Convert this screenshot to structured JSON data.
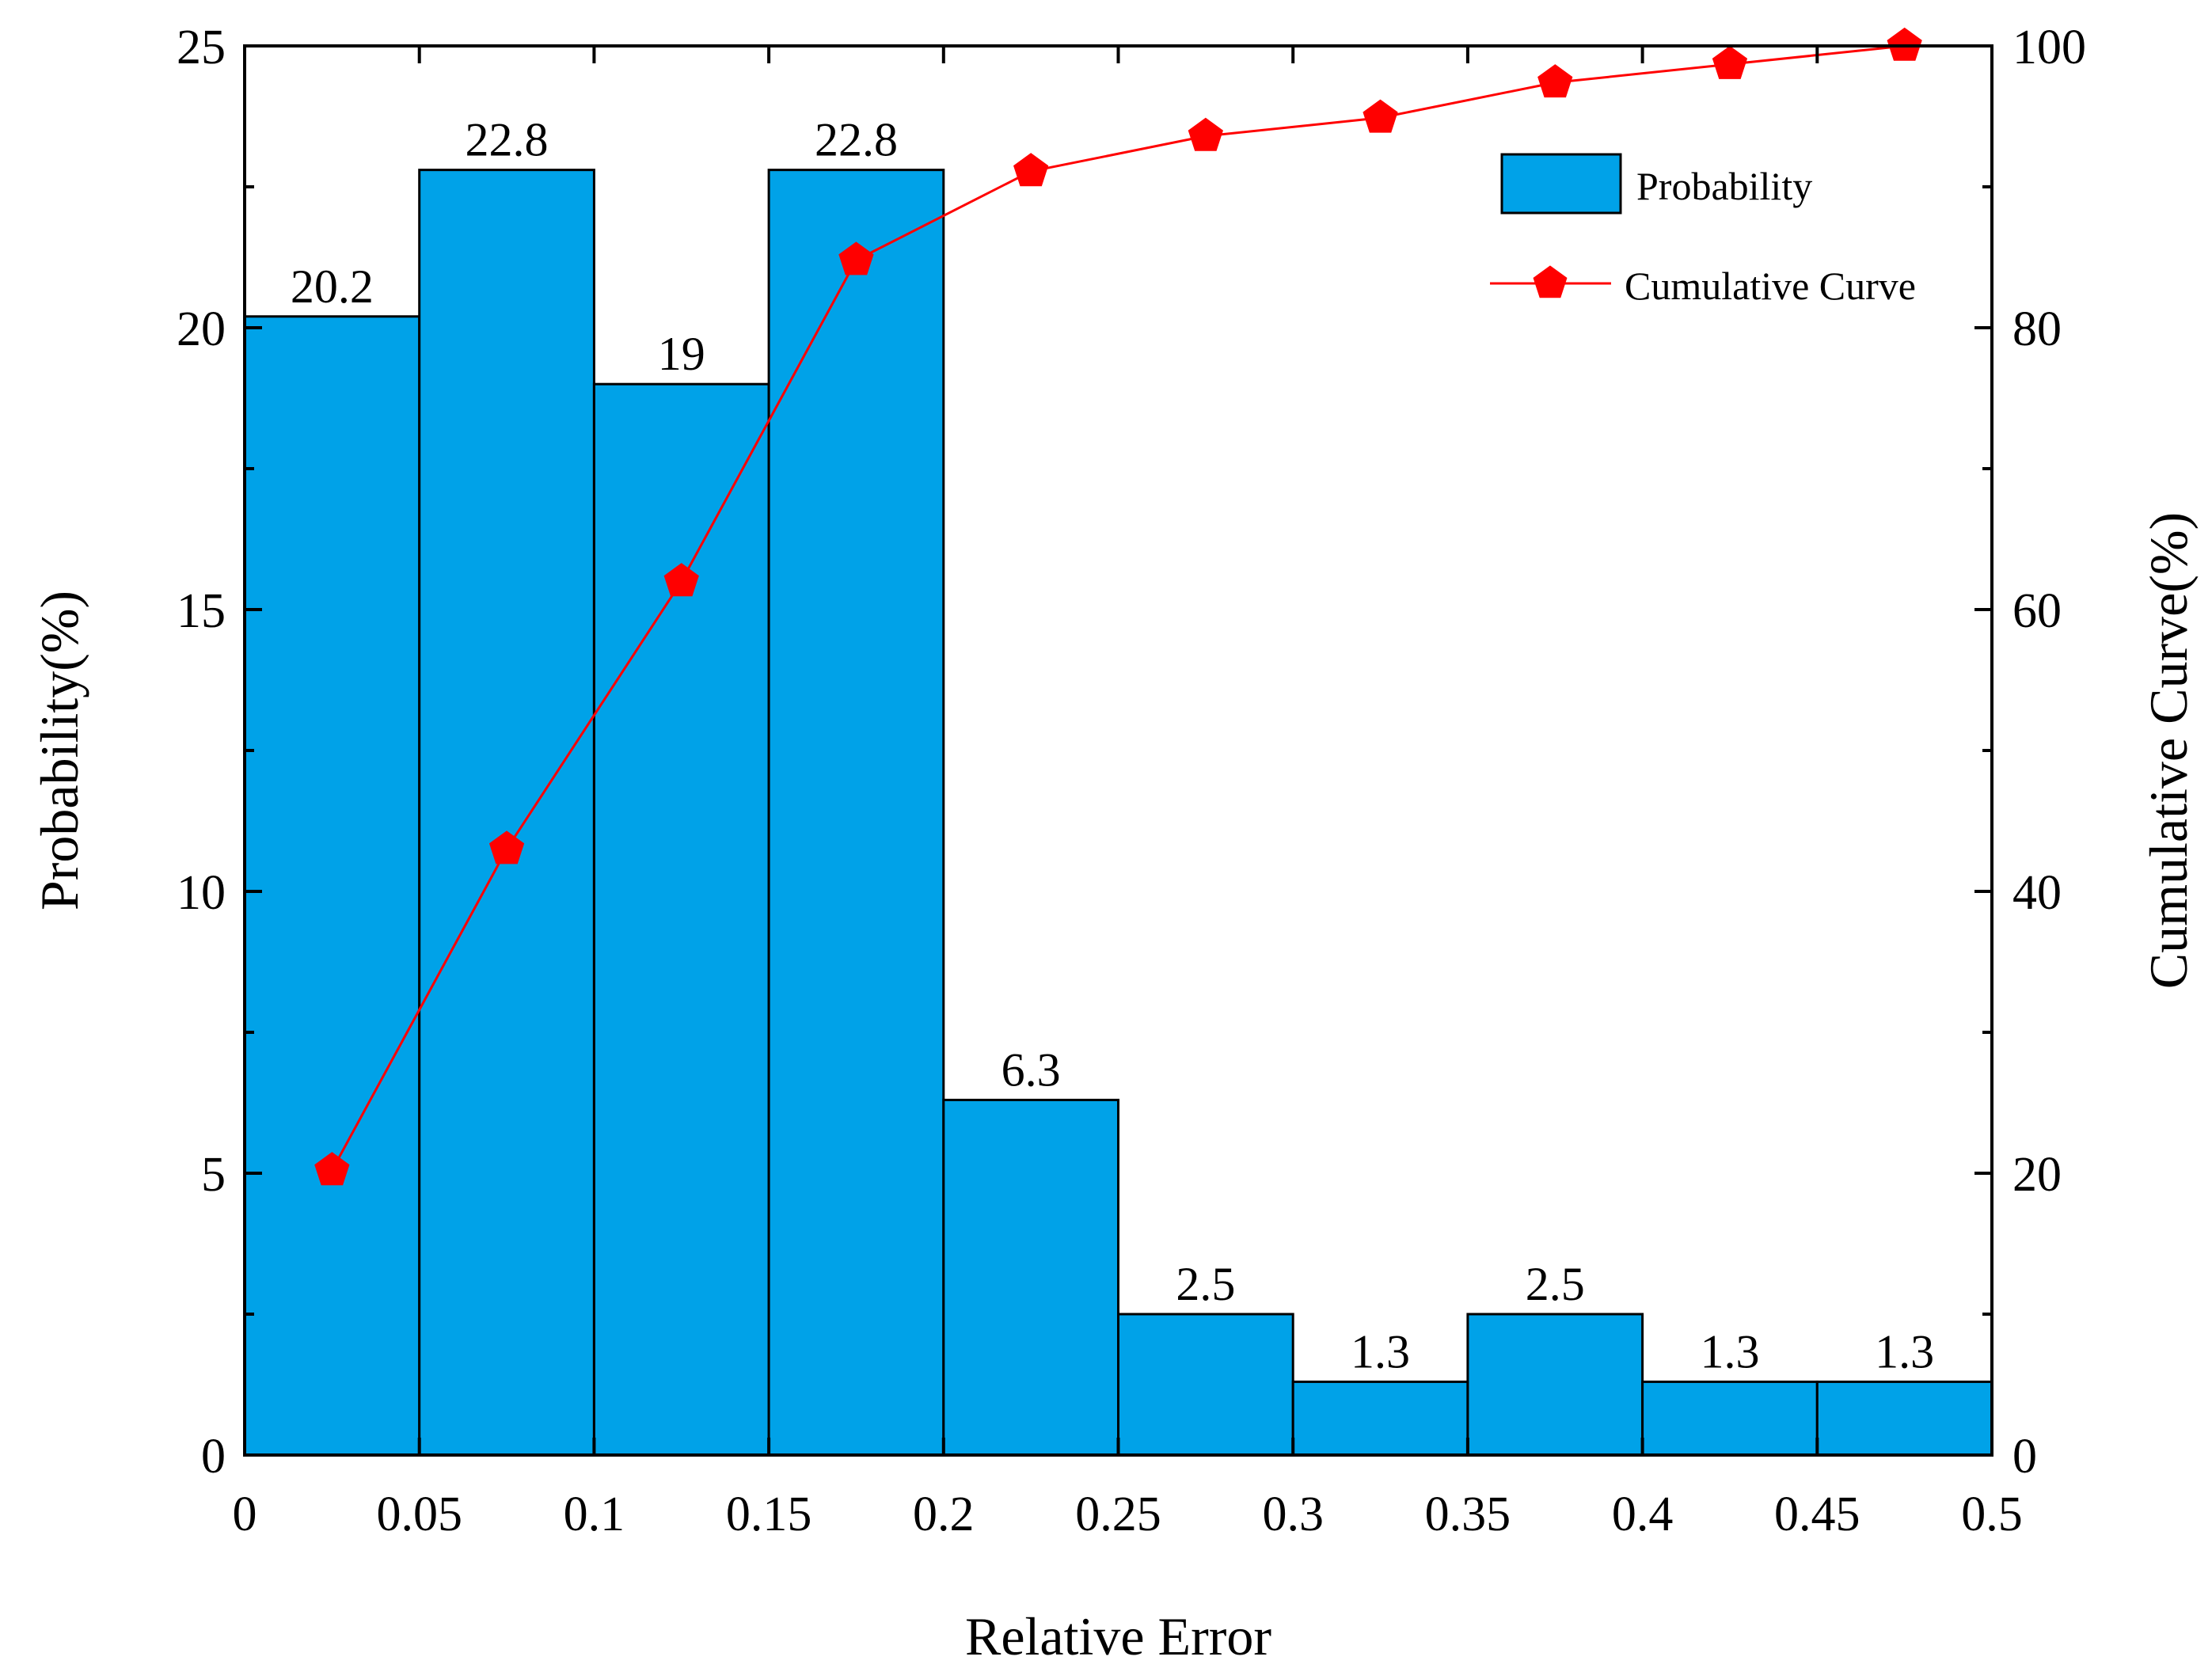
{
  "chart_data": {
    "type": "bar",
    "xlabel": "Relative Error",
    "ylabel": "Probability(%)",
    "y2label": "Cumulative Curve(%)",
    "xlim": [
      0,
      0.5
    ],
    "ylim": [
      0,
      25
    ],
    "y2lim": [
      0,
      100
    ],
    "x_ticks": [
      "0",
      "0.05",
      "0.1",
      "0.15",
      "0.2",
      "0.25",
      "0.3",
      "0.35",
      "0.4",
      "0.45",
      "0.5"
    ],
    "y_ticks": [
      "0",
      "5",
      "10",
      "15",
      "20",
      "25"
    ],
    "y2_ticks": [
      "0",
      "20",
      "40",
      "60",
      "80",
      "100"
    ],
    "bin_edges": [
      0,
      0.05,
      0.1,
      0.15,
      0.2,
      0.25,
      0.3,
      0.35,
      0.4,
      0.45,
      0.5
    ],
    "series": [
      {
        "name": "Probability",
        "type": "bar",
        "axis": "left",
        "values": [
          20.2,
          22.8,
          19,
          22.8,
          6.3,
          2.5,
          1.3,
          2.5,
          1.3,
          1.3
        ],
        "labels": [
          "20.2",
          "22.8",
          "19",
          "22.8",
          "6.3",
          "2.5",
          "1.3",
          "2.5",
          "1.3",
          "1.3"
        ]
      },
      {
        "name": "Cumulative Curve",
        "type": "line",
        "axis": "right",
        "x": [
          0.025,
          0.075,
          0.125,
          0.175,
          0.225,
          0.275,
          0.325,
          0.375,
          0.425,
          0.475
        ],
        "values": [
          20.2,
          43.0,
          62.0,
          84.8,
          91.1,
          93.6,
          94.9,
          97.4,
          98.7,
          100.0
        ]
      }
    ],
    "legend_position": "top-right",
    "grid": false,
    "colors": {
      "bar_fill": "#00A2E8",
      "bar_stroke": "#000000",
      "line": "#FF0000",
      "marker": "#FF0000"
    }
  }
}
